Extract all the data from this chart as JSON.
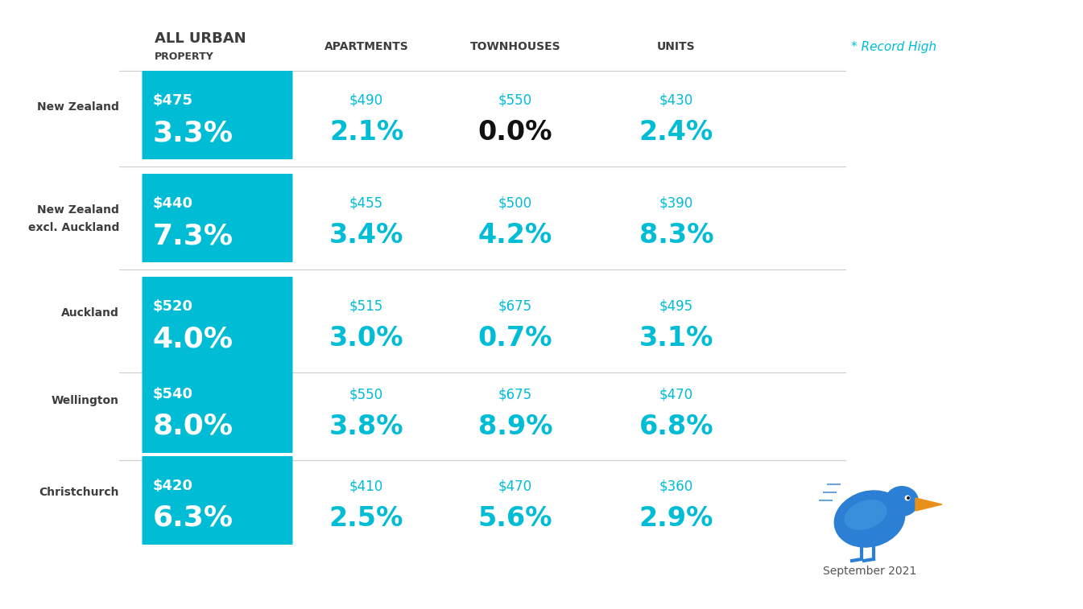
{
  "rows": [
    {
      "label": "New Zealand",
      "label_line2": "",
      "all_urban_price": "$475",
      "all_urban_pct": "3.3%",
      "apartments_price": "$490",
      "apartments_pct": "2.1%",
      "townhouses_price": "$550",
      "townhouses_pct": "0.0%",
      "townhouses_pct_color": "#111111",
      "units_price": "$430",
      "units_pct": "2.4%"
    },
    {
      "label": "New Zealand",
      "label_line2": "excl. Auckland",
      "all_urban_price": "$440",
      "all_urban_pct": "7.3%",
      "apartments_price": "$455",
      "apartments_pct": "3.4%",
      "townhouses_price": "$500",
      "townhouses_pct": "4.2%",
      "townhouses_pct_color": "#00bcd4",
      "units_price": "$390",
      "units_pct": "8.3%"
    },
    {
      "label": "Auckland",
      "label_line2": "",
      "all_urban_price": "$520",
      "all_urban_pct": "4.0%",
      "apartments_price": "$515",
      "apartments_pct": "3.0%",
      "townhouses_price": "$675",
      "townhouses_pct": "0.7%",
      "townhouses_pct_color": "#00bcd4",
      "units_price": "$495",
      "units_pct": "3.1%"
    },
    {
      "label": "Wellington",
      "label_line2": "",
      "all_urban_price": "$540",
      "all_urban_pct": "8.0%",
      "apartments_price": "$550",
      "apartments_pct": "3.8%",
      "townhouses_price": "$675",
      "townhouses_pct": "8.9%",
      "townhouses_pct_color": "#00bcd4",
      "units_price": "$470",
      "units_pct": "6.8%"
    },
    {
      "label": "Christchurch",
      "label_line2": "",
      "all_urban_price": "$420",
      "all_urban_pct": "6.3%",
      "apartments_price": "$410",
      "apartments_pct": "2.5%",
      "townhouses_price": "$470",
      "townhouses_pct": "5.6%",
      "townhouses_pct_color": "#00bcd4",
      "units_price": "$360",
      "units_pct": "2.9%"
    }
  ],
  "teal_color": "#00bcd4",
  "background_color": "#ffffff",
  "label_color": "#3d3d3d",
  "record_high_text": "* Record High",
  "date_text": "September 2021"
}
